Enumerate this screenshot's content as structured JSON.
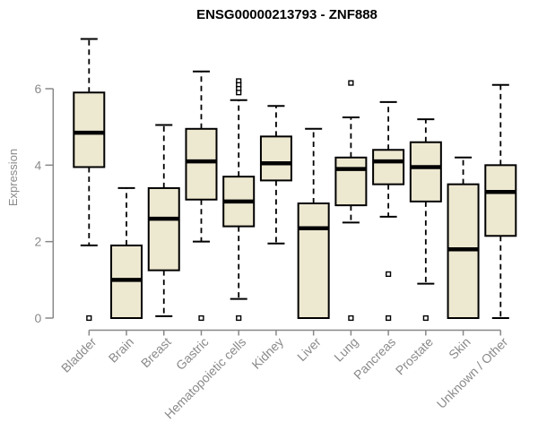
{
  "chart_data": {
    "type": "boxplot",
    "title": "ENSG00000213793 - ZNF888",
    "xlabel": "",
    "ylabel": "Expression",
    "ylim": [
      0,
      7.5
    ],
    "yticks": [
      0,
      2,
      4,
      6
    ],
    "grid": false,
    "legend": "none",
    "colors": {
      "box_fill": "#EDE8D0",
      "box_stroke": "#000000",
      "median": "#000000",
      "whisker": "#000000",
      "axis": "#888888",
      "axis_text": "#8A8A8A",
      "title_text": "#000000",
      "background": "#FFFFFF"
    },
    "categories": [
      "Bladder",
      "Brain",
      "Breast",
      "Gastric",
      "Hematopoietic cells",
      "Kidney",
      "Liver",
      "Lung",
      "Pancreas",
      "Prostate",
      "Skin",
      "Unknown / Other"
    ],
    "series": [
      {
        "category": "Bladder",
        "whisker_low": 1.9,
        "q1": 3.95,
        "median": 4.85,
        "q3": 5.9,
        "whisker_high": 7.3,
        "outliers": [
          0
        ]
      },
      {
        "category": "Brain",
        "whisker_low": 0,
        "q1": 0,
        "median": 1.0,
        "q3": 1.9,
        "whisker_high": 3.4,
        "outliers": []
      },
      {
        "category": "Breast",
        "whisker_low": 0.05,
        "q1": 1.25,
        "median": 2.6,
        "q3": 3.4,
        "whisker_high": 5.05,
        "outliers": []
      },
      {
        "category": "Gastric",
        "whisker_low": 2.0,
        "q1": 3.1,
        "median": 4.1,
        "q3": 4.95,
        "whisker_high": 6.45,
        "outliers": [
          0
        ]
      },
      {
        "category": "Hematopoietic cells",
        "whisker_low": 0.5,
        "q1": 2.4,
        "median": 3.05,
        "q3": 3.7,
        "whisker_high": 5.7,
        "outliers": [
          6.2,
          6.1,
          6.0,
          5.9,
          0
        ]
      },
      {
        "category": "Kidney",
        "whisker_low": 1.95,
        "q1": 3.6,
        "median": 4.05,
        "q3": 4.75,
        "whisker_high": 5.55,
        "outliers": []
      },
      {
        "category": "Liver",
        "whisker_low": 0,
        "q1": 0,
        "median": 2.35,
        "q3": 3.0,
        "whisker_high": 4.95,
        "outliers": []
      },
      {
        "category": "Lung",
        "whisker_low": 2.5,
        "q1": 2.95,
        "median": 3.9,
        "q3": 4.2,
        "whisker_high": 5.25,
        "outliers": [
          6.15,
          0
        ]
      },
      {
        "category": "Pancreas",
        "whisker_low": 2.65,
        "q1": 3.5,
        "median": 4.1,
        "q3": 4.4,
        "whisker_high": 5.65,
        "outliers": [
          1.15,
          0
        ]
      },
      {
        "category": "Prostate",
        "whisker_low": 0.9,
        "q1": 3.05,
        "median": 3.95,
        "q3": 4.6,
        "whisker_high": 5.2,
        "outliers": [
          0
        ]
      },
      {
        "category": "Skin",
        "whisker_low": 0,
        "q1": 0,
        "median": 1.8,
        "q3": 3.5,
        "whisker_high": 4.2,
        "outliers": []
      },
      {
        "category": "Unknown / Other",
        "whisker_low": 0,
        "q1": 2.15,
        "median": 3.3,
        "q3": 4.0,
        "whisker_high": 6.1,
        "outliers": []
      }
    ]
  }
}
